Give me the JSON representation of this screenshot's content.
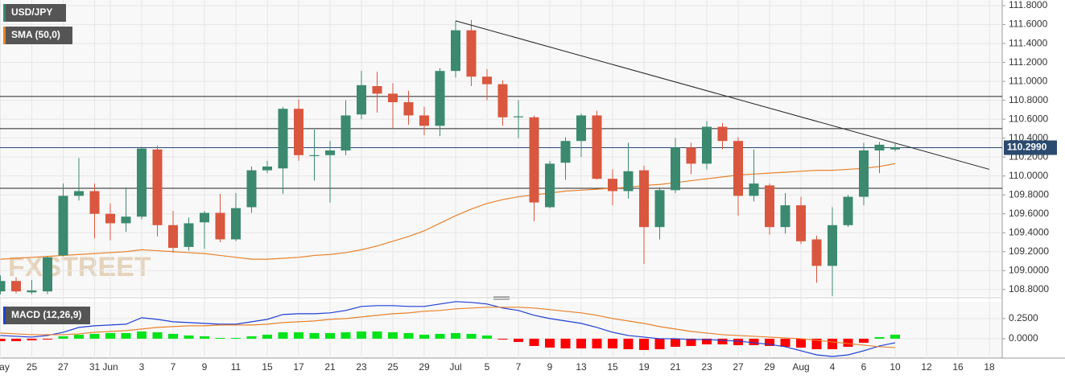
{
  "chart_data": [
    {
      "type": "candlestick",
      "name": "USD/JPY",
      "watermark": "FXSTREET",
      "categories": [
        "May",
        null,
        "25",
        null,
        "27",
        null,
        "31",
        "Jun",
        null,
        "3",
        null,
        "7",
        null,
        "9",
        null,
        "11",
        null,
        "15",
        null,
        "17",
        null,
        "21",
        null,
        "23",
        null,
        "25",
        null,
        "29",
        null,
        "Jul",
        null,
        "5",
        null,
        "7",
        null,
        "9",
        null,
        "13",
        null,
        "15",
        null,
        "19",
        null,
        "21",
        null,
        "23",
        null,
        "27",
        null,
        "29",
        null,
        "Aug",
        null,
        "4",
        null,
        "6",
        null,
        "10",
        null,
        "12",
        null,
        "16",
        null,
        "18"
      ],
      "open": [
        108.78,
        108.89,
        108.77,
        108.78,
        109.16,
        109.79,
        109.84,
        109.6,
        109.5,
        109.57,
        110.28,
        109.48,
        109.25,
        109.51,
        109.61,
        109.33,
        109.67,
        110.06,
        110.08,
        110.71,
        110.21,
        110.22,
        110.27,
        110.65,
        110.95,
        110.87,
        110.78,
        110.64,
        110.53,
        111.11,
        111.54,
        111.05,
        110.97,
        110.62,
        110.62,
        109.67,
        110.14,
        110.37,
        110.64,
        109.97,
        109.84,
        110.06,
        109.46,
        109.85,
        110.3,
        110.13,
        110.52,
        110.37,
        109.79,
        109.9,
        109.46,
        109.69,
        109.33,
        109.05,
        109.48,
        109.78,
        110.27,
        110.28,
        null,
        null,
        null,
        null,
        null,
        null
      ],
      "high": [
        108.95,
        108.93,
        108.9,
        109.15,
        109.92,
        110.19,
        109.92,
        109.71,
        109.88,
        110.31,
        110.32,
        109.63,
        109.56,
        109.63,
        109.81,
        109.82,
        110.1,
        110.16,
        110.73,
        110.81,
        110.49,
        110.37,
        110.8,
        111.11,
        111.1,
        110.98,
        110.9,
        110.73,
        111.14,
        111.64,
        111.65,
        111.13,
        111.01,
        110.8,
        110.64,
        110.16,
        110.41,
        110.66,
        110.69,
        110.07,
        110.35,
        110.11,
        109.88,
        110.4,
        110.35,
        110.58,
        110.56,
        110.41,
        110.28,
        109.92,
        109.82,
        109.78,
        109.37,
        109.67,
        109.8,
        110.35,
        110.36,
        110.34,
        null,
        null,
        null,
        null,
        null,
        null
      ],
      "low": [
        108.75,
        108.76,
        108.75,
        108.75,
        109.15,
        109.74,
        109.34,
        109.32,
        109.41,
        109.54,
        109.36,
        109.19,
        109.21,
        109.23,
        109.3,
        109.31,
        109.61,
        110.03,
        109.81,
        110.16,
        109.95,
        109.72,
        110.22,
        110.6,
        110.67,
        110.5,
        110.54,
        110.43,
        110.42,
        111.04,
        110.95,
        110.8,
        110.53,
        110.4,
        109.52,
        109.66,
        109.96,
        110.2,
        109.96,
        109.69,
        109.76,
        109.07,
        109.33,
        109.82,
        110.02,
        110.07,
        110.28,
        109.58,
        109.73,
        109.38,
        109.39,
        109.28,
        108.87,
        108.73,
        109.46,
        109.69,
        110.03,
        110.26,
        null,
        null,
        null,
        null,
        null,
        null
      ],
      "close": [
        108.89,
        108.78,
        108.79,
        109.14,
        109.79,
        109.84,
        109.6,
        109.5,
        109.57,
        110.29,
        109.48,
        109.24,
        109.5,
        109.61,
        109.33,
        109.66,
        110.06,
        110.1,
        110.71,
        110.22,
        110.22,
        110.27,
        110.64,
        110.96,
        110.87,
        110.78,
        110.64,
        110.53,
        111.11,
        111.54,
        111.05,
        110.97,
        110.62,
        110.63,
        109.72,
        110.13,
        110.37,
        110.64,
        109.97,
        109.84,
        110.05,
        109.46,
        109.85,
        110.3,
        110.13,
        110.52,
        110.37,
        109.79,
        109.92,
        109.46,
        109.69,
        109.31,
        109.05,
        109.48,
        109.78,
        110.27,
        110.33,
        110.3,
        null,
        null,
        null,
        null,
        null,
        null
      ],
      "up_color": "#3b8a6f",
      "down_color": "#d9573f",
      "series": [
        {
          "name": "SMA (50,0)",
          "color": "#e8822c",
          "values": [
            109.12,
            109.13,
            109.14,
            109.15,
            109.16,
            109.17,
            109.18,
            109.19,
            109.2,
            109.22,
            109.21,
            109.2,
            109.19,
            109.18,
            109.16,
            109.14,
            109.12,
            109.12,
            109.13,
            109.14,
            109.16,
            109.17,
            109.19,
            109.22,
            109.26,
            109.31,
            109.36,
            109.42,
            109.5,
            109.58,
            109.65,
            109.71,
            109.75,
            109.78,
            109.8,
            109.82,
            109.84,
            109.85,
            109.86,
            109.87,
            109.88,
            109.9,
            109.91,
            109.93,
            109.95,
            109.97,
            109.99,
            110.01,
            110.02,
            110.03,
            110.04,
            110.05,
            110.06,
            110.06,
            110.07,
            110.08,
            110.1,
            110.13,
            null,
            null,
            null,
            null,
            null,
            null
          ]
        }
      ],
      "hlines": [
        110.84,
        110.5,
        109.87
      ],
      "last": {
        "value": 110.299,
        "label": "110.2990"
      },
      "trendline": {
        "from": [
          29,
          111.64
        ],
        "to": [
          63,
          110.07
        ]
      },
      "ylim": [
        108.73,
        111.86
      ],
      "yticks": [
        {
          "value": 108.8,
          "label": "108.8000"
        },
        {
          "value": 109.0,
          "label": "109.0000"
        },
        {
          "value": 109.2,
          "label": "109.2000"
        },
        {
          "value": 109.4,
          "label": "109.4000"
        },
        {
          "value": 109.6,
          "label": "109.6000"
        },
        {
          "value": 109.8,
          "label": "109.8000"
        },
        {
          "value": 110.0,
          "label": "110.0000"
        },
        {
          "value": 110.2,
          "label": "110.2000"
        },
        {
          "value": 110.4,
          "label": "110.4000"
        },
        {
          "value": 110.6,
          "label": "110.6000"
        },
        {
          "value": 110.8,
          "label": "110.8000"
        },
        {
          "value": 111.0,
          "label": "111.0000"
        },
        {
          "value": 111.2,
          "label": "111.2000"
        },
        {
          "value": 111.4,
          "label": "111.4000"
        },
        {
          "value": 111.6,
          "label": "111.6000"
        },
        {
          "value": 111.8,
          "label": "111.8000"
        }
      ],
      "grid": true
    },
    {
      "type": "macd",
      "name": "MACD (12,26,9)",
      "series": [
        {
          "color": "#1f3fd6",
          "values": [
            0.04,
            0.03,
            0.02,
            0.04,
            0.08,
            0.14,
            0.16,
            0.17,
            0.18,
            0.26,
            0.24,
            0.21,
            0.2,
            0.19,
            0.18,
            0.18,
            0.21,
            0.24,
            0.3,
            0.31,
            0.31,
            0.32,
            0.35,
            0.4,
            0.41,
            0.41,
            0.4,
            0.4,
            0.43,
            0.46,
            0.45,
            0.43,
            0.38,
            0.35,
            0.29,
            0.25,
            0.22,
            0.19,
            0.14,
            0.08,
            0.04,
            0.02,
            0.0,
            0.0,
            -0.01,
            -0.01,
            -0.02,
            -0.03,
            -0.05,
            -0.07,
            -0.1,
            -0.15,
            -0.2,
            -0.22,
            -0.2,
            -0.15,
            -0.09,
            -0.05,
            null,
            null,
            null,
            null,
            null,
            null
          ]
        },
        {
          "color": "#e8822c",
          "values": [
            0.07,
            0.06,
            0.05,
            0.05,
            0.05,
            0.06,
            0.08,
            0.09,
            0.1,
            0.12,
            0.14,
            0.15,
            0.16,
            0.16,
            0.17,
            0.17,
            0.17,
            0.18,
            0.2,
            0.21,
            0.22,
            0.24,
            0.25,
            0.27,
            0.29,
            0.31,
            0.32,
            0.34,
            0.35,
            0.37,
            0.38,
            0.39,
            0.39,
            0.39,
            0.38,
            0.36,
            0.34,
            0.32,
            0.29,
            0.25,
            0.22,
            0.19,
            0.15,
            0.12,
            0.09,
            0.07,
            0.05,
            0.04,
            0.03,
            0.02,
            0.01,
            0.0,
            -0.02,
            -0.04,
            -0.06,
            -0.08,
            -0.1,
            -0.11,
            null,
            null,
            null,
            null,
            null,
            null
          ]
        }
      ],
      "histogram": {
        "up_color": "#00e31a",
        "down_color": "#ff0000",
        "values": [
          -0.03,
          -0.03,
          -0.02,
          -0.01,
          0.03,
          0.05,
          0.06,
          0.07,
          0.07,
          0.09,
          0.08,
          0.06,
          0.04,
          0.03,
          0.01,
          0.01,
          0.03,
          0.05,
          0.08,
          0.08,
          0.07,
          0.07,
          0.08,
          0.09,
          0.09,
          0.08,
          0.07,
          0.05,
          0.06,
          0.07,
          0.06,
          0.04,
          -0.01,
          -0.04,
          -0.09,
          -0.11,
          -0.12,
          -0.12,
          -0.12,
          -0.12,
          -0.13,
          -0.14,
          -0.13,
          -0.1,
          -0.09,
          -0.07,
          -0.07,
          -0.08,
          -0.08,
          -0.09,
          -0.1,
          -0.11,
          -0.13,
          -0.13,
          -0.1,
          -0.05,
          0.02,
          0.05,
          null,
          null,
          null,
          null,
          null,
          null
        ]
      },
      "ylim": [
        -0.24,
        0.458
      ],
      "yticks": [
        {
          "value": 0.25,
          "label": "0.2500"
        },
        {
          "value": 0,
          "label": "0.0000"
        }
      ]
    }
  ]
}
